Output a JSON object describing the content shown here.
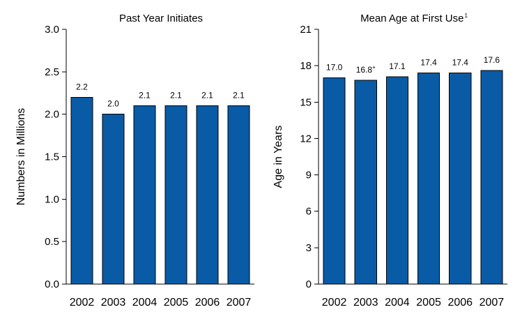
{
  "colors": {
    "bar": "#0a5ba6"
  },
  "chart_data": [
    {
      "type": "bar",
      "title": "Past Year Initiates",
      "title_sup": "",
      "xlabel": "",
      "ylabel": "Numbers in Millions",
      "categories": [
        "2002",
        "2003",
        "2004",
        "2005",
        "2006",
        "2007"
      ],
      "values": [
        2.2,
        2.0,
        2.1,
        2.1,
        2.1,
        2.1
      ],
      "value_labels": [
        "2.2",
        "2.0",
        "2.1",
        "2.1",
        "2.1",
        "2.1"
      ],
      "value_label_sups": [
        "",
        "",
        "",
        "",
        "",
        ""
      ],
      "ylim": [
        0,
        3.0
      ],
      "yticks": [
        "0.0",
        "0.5",
        "1.0",
        "1.5",
        "2.0",
        "2.5",
        "3.0"
      ],
      "grid": false,
      "legend": "none"
    },
    {
      "type": "bar",
      "title": "Mean Age at First Use",
      "title_sup": "1",
      "xlabel": "",
      "ylabel": "Age in Years",
      "categories": [
        "2002",
        "2003",
        "2004",
        "2005",
        "2006",
        "2007"
      ],
      "values": [
        17.0,
        16.8,
        17.1,
        17.4,
        17.4,
        17.6
      ],
      "value_labels": [
        "17.0",
        "16.8",
        "17.1",
        "17.4",
        "17.4",
        "17.6"
      ],
      "value_label_sups": [
        "",
        "+",
        "",
        "",
        "",
        ""
      ],
      "ylim": [
        0,
        21
      ],
      "yticks": [
        "0",
        "3",
        "6",
        "9",
        "12",
        "15",
        "18",
        "21"
      ],
      "grid": false,
      "legend": "none"
    }
  ]
}
